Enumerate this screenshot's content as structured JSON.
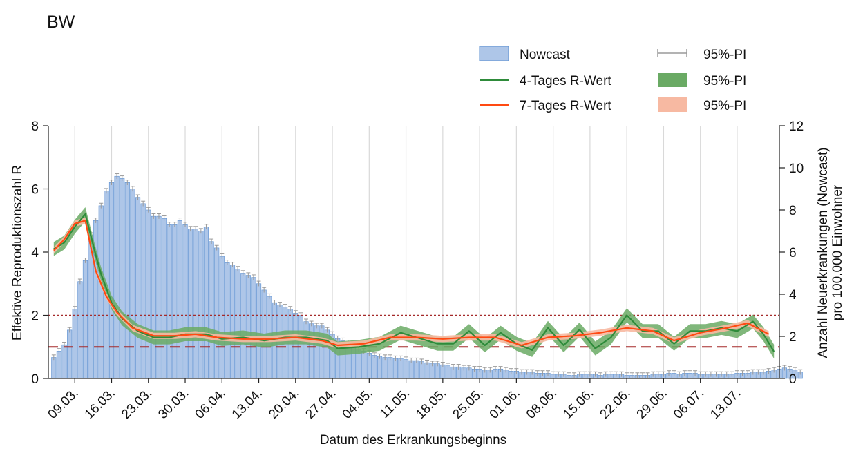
{
  "colors": {
    "nowcast_fill": "#aec6e8",
    "nowcast_edge": "#5b8fd0",
    "pi_bar": "#9a9a9a",
    "r4_line": "#2e8b3a",
    "r4_band": "#6aaa64",
    "r7_line": "#ff4a12",
    "r7_band": "#f7b9a2",
    "ref_line": "#a52a2a",
    "grid": "#d9d9d9"
  },
  "chart_data": {
    "type": "bar+line",
    "title": "BW",
    "xlabel": "Datum des Erkrankungsbeginns",
    "ylabel_left": "Effektive Reproduktionszahl R",
    "ylabel_right": [
      "Anzahl Neuerkrankungen (Nowcast)",
      "pro 100.000 Einwohner"
    ],
    "ylim_left": [
      0,
      8
    ],
    "ylim_right": [
      0,
      12
    ],
    "yticks_left": [
      "0",
      "2",
      "4",
      "6",
      "8"
    ],
    "yticks_right": [
      "0",
      "2",
      "4",
      "6",
      "8",
      "10",
      "12"
    ],
    "x_start": "2020-03-05",
    "x_end": "2020-07-20",
    "x_tick_labels": [
      "09.03.",
      "16.03.",
      "23.03.",
      "30.03.",
      "06.04.",
      "13.04.",
      "20.04.",
      "27.04.",
      "04.05.",
      "11.05.",
      "18.05.",
      "25.05.",
      "01.06.",
      "08.06.",
      "15.06.",
      "22.06.",
      "29.06.",
      "06.07.",
      "13.07."
    ],
    "x_ticks": [
      "2020-03-09",
      "2020-03-16",
      "2020-03-23",
      "2020-03-30",
      "2020-04-06",
      "2020-04-13",
      "2020-04-20",
      "2020-04-27",
      "2020-05-04",
      "2020-05-11",
      "2020-05-18",
      "2020-05-25",
      "2020-06-01",
      "2020-06-08",
      "2020-06-15",
      "2020-06-22",
      "2020-06-29",
      "2020-07-06",
      "2020-07-13"
    ],
    "reference_lines_left": [
      1,
      2
    ],
    "grid": "vertical",
    "legend": {
      "placement": "top-right",
      "entries": [
        {
          "label": "Nowcast",
          "kind": "bar"
        },
        {
          "label": "95%-PI",
          "kind": "errorbar"
        },
        {
          "label": "4-Tages R-Wert",
          "kind": "line-green"
        },
        {
          "label": "95%-PI",
          "kind": "band-green"
        },
        {
          "label": "7-Tages R-Wert",
          "kind": "line-orange"
        },
        {
          "label": "95%-PI",
          "kind": "band-orange"
        }
      ]
    },
    "series": [
      {
        "name": "Nowcast",
        "axis": "right",
        "date_start": "2020-03-05",
        "values": [
          1.0,
          1.3,
          1.6,
          2.3,
          3.3,
          4.6,
          5.6,
          6.8,
          7.5,
          8.2,
          8.9,
          9.3,
          9.6,
          9.5,
          9.3,
          9.0,
          8.6,
          8.3,
          8.0,
          7.7,
          7.7,
          7.6,
          7.3,
          7.3,
          7.5,
          7.3,
          7.1,
          7.1,
          7.0,
          7.2,
          6.5,
          6.2,
          5.8,
          5.5,
          5.4,
          5.2,
          5.0,
          4.9,
          4.8,
          4.5,
          4.2,
          3.9,
          3.6,
          3.5,
          3.4,
          3.3,
          3.1,
          3.0,
          2.7,
          2.6,
          2.5,
          2.5,
          2.3,
          2.1,
          1.9,
          1.8,
          1.7,
          1.6,
          1.4,
          1.3,
          1.2,
          1.1,
          1.05,
          1.0,
          1.0,
          0.95,
          0.95,
          0.9,
          0.85,
          0.85,
          0.8,
          0.75,
          0.7,
          0.7,
          0.65,
          0.6,
          0.55,
          0.55,
          0.5,
          0.5,
          0.45,
          0.45,
          0.4,
          0.4,
          0.45,
          0.45,
          0.4,
          0.35,
          0.35,
          0.3,
          0.3,
          0.3,
          0.25,
          0.25,
          0.25,
          0.2,
          0.2,
          0.2,
          0.15,
          0.15,
          0.2,
          0.2,
          0.2,
          0.2,
          0.15,
          0.2,
          0.2,
          0.2,
          0.2,
          0.15,
          0.15,
          0.15,
          0.15,
          0.15,
          0.2,
          0.2,
          0.2,
          0.25,
          0.25,
          0.2,
          0.25,
          0.25,
          0.25,
          0.2,
          0.2,
          0.2,
          0.2,
          0.2,
          0.2,
          0.2,
          0.25,
          0.25,
          0.25,
          0.3,
          0.3,
          0.3,
          0.35,
          0.4,
          0.45,
          0.5,
          0.45,
          0.4,
          0.3
        ],
        "pi_half_width": 0.12
      },
      {
        "name": "4-Tages R-Wert",
        "axis": "left",
        "points": [
          [
            "2020-03-05",
            4.1
          ],
          [
            "2020-03-07",
            4.3
          ],
          [
            "2020-03-09",
            4.8
          ],
          [
            "2020-03-11",
            5.2
          ],
          [
            "2020-03-13",
            3.9
          ],
          [
            "2020-03-14",
            3.3
          ],
          [
            "2020-03-16",
            2.4
          ],
          [
            "2020-03-18",
            1.9
          ],
          [
            "2020-03-21",
            1.5
          ],
          [
            "2020-03-24",
            1.3
          ],
          [
            "2020-03-27",
            1.3
          ],
          [
            "2020-03-30",
            1.4
          ],
          [
            "2020-04-03",
            1.4
          ],
          [
            "2020-04-06",
            1.25
          ],
          [
            "2020-04-10",
            1.3
          ],
          [
            "2020-04-14",
            1.2
          ],
          [
            "2020-04-18",
            1.3
          ],
          [
            "2020-04-22",
            1.3
          ],
          [
            "2020-04-26",
            1.2
          ],
          [
            "2020-04-28",
            0.95
          ],
          [
            "2020-05-02",
            1.0
          ],
          [
            "2020-05-06",
            1.1
          ],
          [
            "2020-05-10",
            1.45
          ],
          [
            "2020-05-13",
            1.3
          ],
          [
            "2020-05-17",
            1.1
          ],
          [
            "2020-05-20",
            1.1
          ],
          [
            "2020-05-23",
            1.5
          ],
          [
            "2020-05-26",
            1.05
          ],
          [
            "2020-05-29",
            1.45
          ],
          [
            "2020-06-01",
            1.1
          ],
          [
            "2020-06-04",
            0.9
          ],
          [
            "2020-06-07",
            1.6
          ],
          [
            "2020-06-10",
            1.05
          ],
          [
            "2020-06-13",
            1.55
          ],
          [
            "2020-06-16",
            0.95
          ],
          [
            "2020-06-19",
            1.3
          ],
          [
            "2020-06-22",
            2.0
          ],
          [
            "2020-06-25",
            1.5
          ],
          [
            "2020-06-28",
            1.5
          ],
          [
            "2020-07-01",
            1.1
          ],
          [
            "2020-07-04",
            1.5
          ],
          [
            "2020-07-07",
            1.5
          ],
          [
            "2020-07-10",
            1.6
          ],
          [
            "2020-07-13",
            1.5
          ],
          [
            "2020-07-16",
            1.8
          ],
          [
            "2020-07-18",
            1.4
          ],
          [
            "2020-07-20",
            0.85
          ]
        ],
        "ci_half_width": 0.22
      },
      {
        "name": "7-Tages R-Wert",
        "axis": "left",
        "points": [
          [
            "2020-03-05",
            4.05
          ],
          [
            "2020-03-07",
            4.4
          ],
          [
            "2020-03-09",
            4.9
          ],
          [
            "2020-03-11",
            5.0
          ],
          [
            "2020-03-13",
            3.4
          ],
          [
            "2020-03-15",
            2.6
          ],
          [
            "2020-03-17",
            2.1
          ],
          [
            "2020-03-20",
            1.6
          ],
          [
            "2020-03-24",
            1.35
          ],
          [
            "2020-03-28",
            1.35
          ],
          [
            "2020-04-01",
            1.4
          ],
          [
            "2020-04-05",
            1.3
          ],
          [
            "2020-04-10",
            1.25
          ],
          [
            "2020-04-15",
            1.25
          ],
          [
            "2020-04-20",
            1.3
          ],
          [
            "2020-04-25",
            1.2
          ],
          [
            "2020-04-28",
            1.05
          ],
          [
            "2020-05-03",
            1.1
          ],
          [
            "2020-05-08",
            1.3
          ],
          [
            "2020-05-13",
            1.3
          ],
          [
            "2020-05-18",
            1.25
          ],
          [
            "2020-05-23",
            1.3
          ],
          [
            "2020-05-28",
            1.3
          ],
          [
            "2020-06-02",
            1.05
          ],
          [
            "2020-06-07",
            1.3
          ],
          [
            "2020-06-12",
            1.35
          ],
          [
            "2020-06-17",
            1.45
          ],
          [
            "2020-06-22",
            1.6
          ],
          [
            "2020-06-27",
            1.5
          ],
          [
            "2020-07-01",
            1.2
          ],
          [
            "2020-07-06",
            1.45
          ],
          [
            "2020-07-11",
            1.6
          ],
          [
            "2020-07-15",
            1.75
          ],
          [
            "2020-07-19",
            1.4
          ]
        ],
        "ci_half_width": 0.1
      }
    ]
  }
}
